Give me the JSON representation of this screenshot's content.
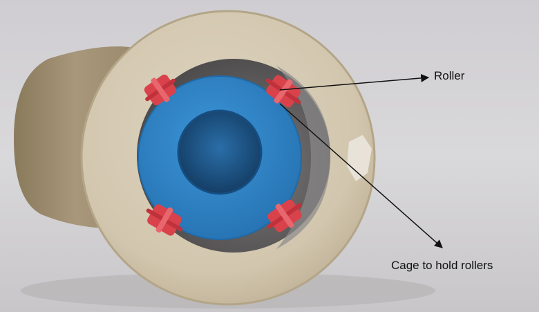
{
  "annotations": {
    "roller": "Roller",
    "cage": "Cage to hold rollers"
  },
  "colors": {
    "background": "#d6d4d6",
    "housing": "#d3c8b2",
    "housing_shadow": "#a59574",
    "bore_gap": "#5f5d5d",
    "inner_race": "#2f86c9",
    "inner_bore": "#1e5488",
    "roller": "#d9424b",
    "arrow": "#111111"
  }
}
